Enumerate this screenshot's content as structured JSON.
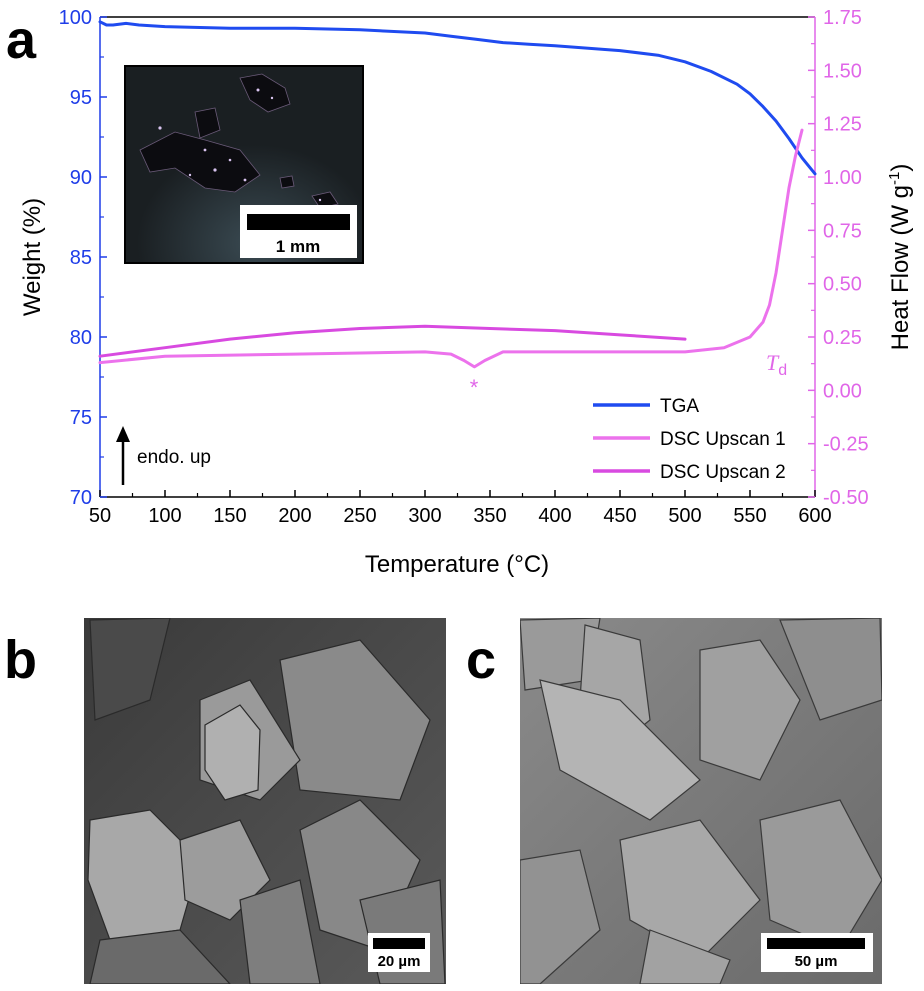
{
  "panels": {
    "a": "a",
    "b": "b",
    "c": "c"
  },
  "chart_data": {
    "type": "line",
    "xlabel": "Temperature (°C)",
    "ylabel_left": "Weight (%)",
    "ylabel_right_main": "Heat Flow (W g",
    "ylabel_right_sup": "-1",
    "ylabel_right_end": ")",
    "xlim": [
      50,
      600
    ],
    "ylim_left": [
      70,
      100
    ],
    "ylim_right": [
      -0.5,
      1.75
    ],
    "x_ticks": [
      50,
      100,
      150,
      200,
      250,
      300,
      350,
      400,
      450,
      500,
      550,
      600
    ],
    "y_left_ticks": [
      70,
      75,
      80,
      85,
      90,
      95,
      100
    ],
    "y_right_ticks": [
      "-0.50",
      "-0.25",
      "0.00",
      "0.25",
      "0.50",
      "0.75",
      "1.00",
      "1.25",
      "1.50",
      "1.75"
    ],
    "grid": false,
    "legend_position": "bottom-right",
    "colors": {
      "left_axis": "#1f3de8",
      "right_axis": "#e066e8"
    },
    "series": [
      {
        "name": "TGA",
        "axis": "left",
        "color": "#1f4bf0",
        "x": [
          50,
          55,
          60,
          70,
          80,
          100,
          150,
          200,
          250,
          300,
          320,
          340,
          360,
          380,
          400,
          450,
          480,
          500,
          520,
          540,
          550,
          560,
          570,
          580,
          590,
          600
        ],
        "y": [
          99.7,
          99.5,
          99.5,
          99.6,
          99.5,
          99.4,
          99.3,
          99.3,
          99.2,
          99.0,
          98.8,
          98.6,
          98.4,
          98.3,
          98.2,
          97.9,
          97.6,
          97.2,
          96.6,
          95.8,
          95.2,
          94.4,
          93.5,
          92.4,
          91.2,
          90.2
        ]
      },
      {
        "name": "DSC Upscan 1",
        "axis": "right",
        "color": "#ec72ec",
        "x": [
          50,
          100,
          200,
          300,
          320,
          330,
          338,
          346,
          360,
          400,
          450,
          500,
          530,
          550,
          560,
          565,
          570,
          575,
          580,
          585,
          590
        ],
        "y": [
          0.13,
          0.16,
          0.17,
          0.18,
          0.17,
          0.14,
          0.11,
          0.14,
          0.18,
          0.18,
          0.18,
          0.18,
          0.2,
          0.25,
          0.32,
          0.4,
          0.55,
          0.75,
          0.95,
          1.1,
          1.22
        ]
      },
      {
        "name": "DSC Upscan 2",
        "axis": "right",
        "color": "#d84ae0",
        "x": [
          50,
          100,
          150,
          200,
          250,
          300,
          350,
          400,
          450,
          500
        ],
        "y": [
          0.16,
          0.2,
          0.24,
          0.27,
          0.29,
          0.3,
          0.29,
          0.28,
          0.26,
          0.24
        ]
      }
    ],
    "annotations": {
      "star": "*",
      "td_main": "T",
      "td_sub": "d",
      "arrow_label": "endo. up"
    }
  },
  "scale_bars": {
    "inset": "1 mm",
    "b": "20 µm",
    "c": "50 µm"
  }
}
